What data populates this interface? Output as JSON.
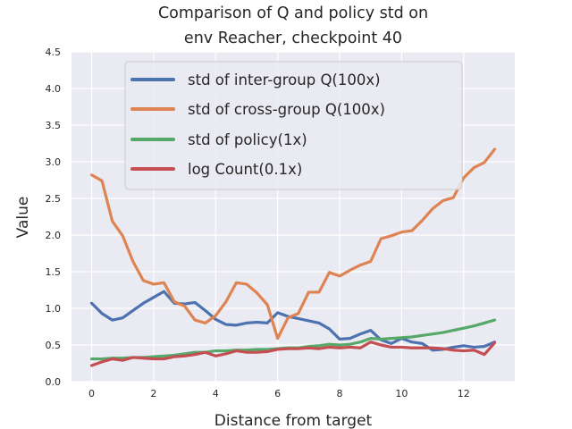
{
  "chart_data": {
    "type": "line",
    "title_lines": [
      "Comparison of Q and policy std on",
      "env Reacher, checkpoint 40"
    ],
    "xlabel": "Distance from target",
    "ylabel": "Value",
    "xlim": [
      -0.65,
      13.65
    ],
    "ylim": [
      0,
      4.5
    ],
    "xticks": [
      0,
      2,
      4,
      6,
      8,
      10,
      12
    ],
    "yticks": [
      0.0,
      0.5,
      1.0,
      1.5,
      2.0,
      2.5,
      3.0,
      3.5,
      4.0,
      4.5
    ],
    "xtick_labels": [
      "0",
      "2",
      "4",
      "6",
      "8",
      "10",
      "12"
    ],
    "ytick_labels": [
      "0.0",
      "0.5",
      "1.0",
      "1.5",
      "2.0",
      "2.5",
      "3.0",
      "3.5",
      "4.0",
      "4.5"
    ],
    "grid": true,
    "legend_position": "upper-center",
    "x": [
      0,
      0.333,
      0.667,
      1.0,
      1.333,
      1.667,
      2.0,
      2.333,
      2.667,
      3.0,
      3.333,
      3.667,
      4.0,
      4.333,
      4.667,
      5.0,
      5.333,
      5.667,
      6.0,
      6.333,
      6.667,
      7.0,
      7.333,
      7.667,
      8.0,
      8.333,
      8.667,
      9.0,
      9.333,
      9.667,
      10.0,
      10.333,
      10.667,
      11.0,
      11.333,
      11.667,
      12.0,
      12.333,
      12.667,
      13.0
    ],
    "series": [
      {
        "name": "std of inter-group Q(100x)",
        "color": "#4c72b0",
        "values": [
          1.07,
          0.93,
          0.84,
          0.87,
          0.97,
          1.07,
          1.15,
          1.23,
          1.07,
          1.06,
          1.08,
          0.97,
          0.85,
          0.78,
          0.77,
          0.8,
          0.81,
          0.8,
          0.94,
          0.89,
          0.86,
          0.83,
          0.8,
          0.72,
          0.58,
          0.59,
          0.65,
          0.7,
          0.57,
          0.52,
          0.59,
          0.54,
          0.52,
          0.43,
          0.44,
          0.47,
          0.49,
          0.47,
          0.48,
          0.54
        ]
      },
      {
        "name": "std of cross-group Q(100x)",
        "color": "#dd8452",
        "values": [
          2.82,
          2.74,
          2.19,
          1.99,
          1.64,
          1.38,
          1.33,
          1.35,
          1.09,
          1.03,
          0.84,
          0.8,
          0.9,
          1.09,
          1.35,
          1.33,
          1.21,
          1.05,
          0.59,
          0.87,
          0.93,
          1.22,
          1.22,
          1.49,
          1.44,
          1.52,
          1.59,
          1.64,
          1.95,
          1.99,
          2.04,
          2.06,
          2.2,
          2.36,
          2.47,
          2.51,
          2.78,
          2.92,
          2.99,
          3.17
        ]
      },
      {
        "name": "std of policy(1x)",
        "color": "#55a868",
        "values": [
          0.31,
          0.31,
          0.32,
          0.32,
          0.33,
          0.33,
          0.34,
          0.35,
          0.36,
          0.38,
          0.4,
          0.4,
          0.42,
          0.42,
          0.43,
          0.43,
          0.44,
          0.44,
          0.45,
          0.46,
          0.46,
          0.48,
          0.49,
          0.51,
          0.5,
          0.51,
          0.54,
          0.59,
          0.58,
          0.59,
          0.6,
          0.61,
          0.63,
          0.65,
          0.67,
          0.7,
          0.73,
          0.76,
          0.8,
          0.84
        ]
      },
      {
        "name": "log Count(0.1x)",
        "color": "#c44e52",
        "values": [
          0.22,
          0.27,
          0.31,
          0.29,
          0.33,
          0.32,
          0.31,
          0.31,
          0.34,
          0.35,
          0.37,
          0.4,
          0.35,
          0.38,
          0.42,
          0.4,
          0.4,
          0.41,
          0.44,
          0.45,
          0.45,
          0.46,
          0.45,
          0.47,
          0.46,
          0.47,
          0.46,
          0.54,
          0.5,
          0.47,
          0.47,
          0.46,
          0.46,
          0.46,
          0.45,
          0.43,
          0.42,
          0.43,
          0.37,
          0.53
        ]
      }
    ]
  }
}
